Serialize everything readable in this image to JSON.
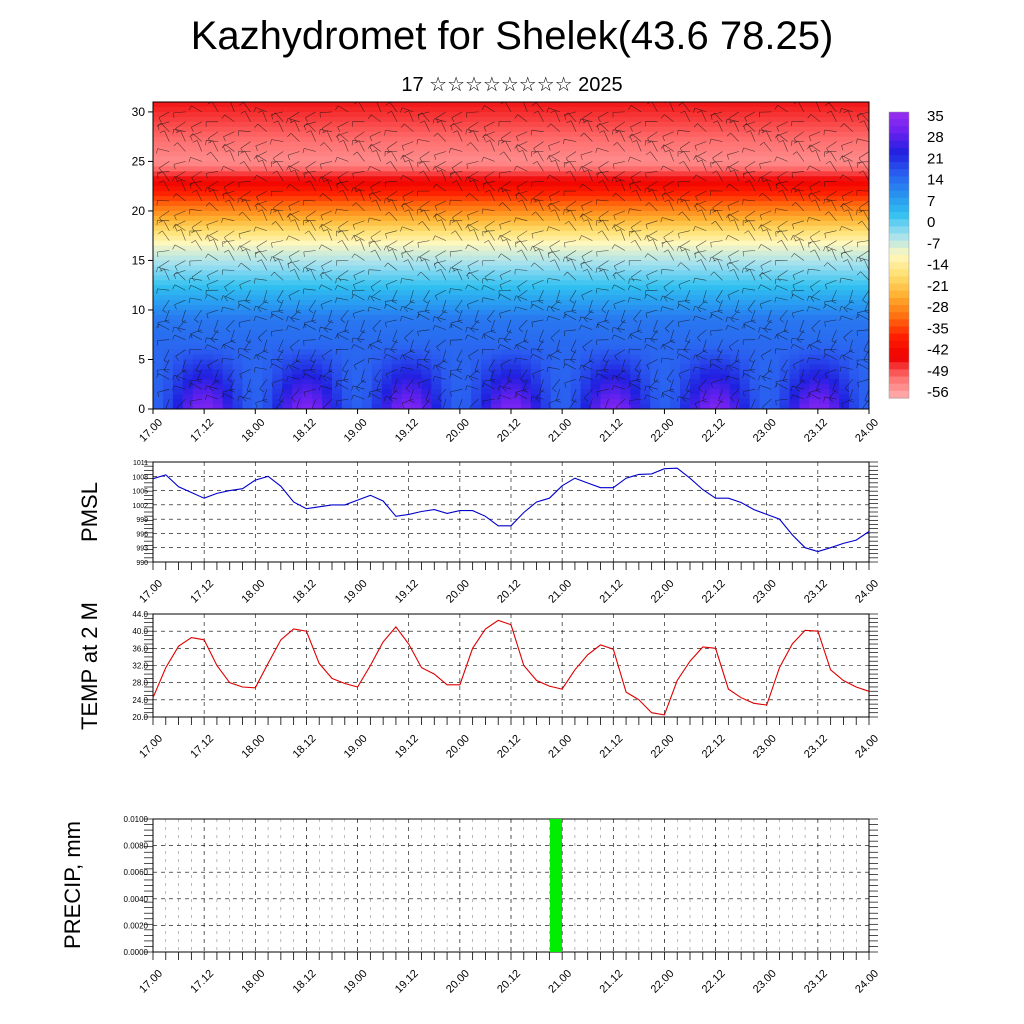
{
  "header": {
    "title": "Kazhydromet for Shelek(43.6 78.25)",
    "subtitle": "17 ☆☆☆☆☆☆☆☆ 2025"
  },
  "time_labels": [
    "17.00",
    "17.12",
    "18.00",
    "18.12",
    "19.00",
    "19.12",
    "20.00",
    "20.12",
    "21.00",
    "21.12",
    "22.00",
    "22.12",
    "23.00",
    "23.12",
    "24.00"
  ],
  "colors": {
    "pmsl_line": "#0000cc",
    "temp_line": "#dd0000",
    "precip_bar": "#00ee00",
    "colorbar": [
      "#9a30f0",
      "#6a20f0",
      "#2020e0",
      "#2a5cf0",
      "#2890f0",
      "#30c0f0",
      "#a0e0f0",
      "#fff8c0",
      "#ffe070",
      "#ffb030",
      "#ff7010",
      "#ff2000",
      "#ee0000",
      "#ff7070",
      "#ffb0b0"
    ]
  },
  "chart_data": [
    {
      "type": "heatmap",
      "description_key": "cross-section temperature with wind barbs",
      "y_ticks": [
        0,
        5,
        10,
        15,
        20,
        25,
        30
      ],
      "ylim": [
        0,
        31
      ],
      "x_ticks": [
        "17.00",
        "17.12",
        "18.00",
        "18.12",
        "19.00",
        "19.12",
        "20.00",
        "20.12",
        "21.00",
        "21.12",
        "22.00",
        "22.12",
        "23.00",
        "23.12",
        "24.00"
      ],
      "colorbar_labels": [
        "35",
        "28",
        "21",
        "14",
        "7",
        "0",
        "-7",
        "-14",
        "-21",
        "-28",
        "-35",
        "-42",
        "-49",
        "-56"
      ],
      "colorbar_range": [
        -60,
        40
      ],
      "warm_maxima_x": [
        0.5,
        1.5,
        2.5,
        3.5,
        4.5,
        5.5,
        6.5
      ]
    },
    {
      "type": "line",
      "ylabel": "PMSL",
      "ylim": [
        990,
        1011
      ],
      "y_ticks": [
        "990",
        "993",
        "996",
        "999",
        "1002",
        "1005",
        "1008",
        "1011"
      ],
      "x_ticks": [
        "17.00",
        "17.12",
        "18.00",
        "18.12",
        "19.00",
        "19.12",
        "20.00",
        "20.12",
        "21.00",
        "21.12",
        "22.00",
        "22.12",
        "23.00",
        "23.12",
        "24.00"
      ],
      "x": [
        0,
        0.125,
        0.25,
        0.375,
        0.5,
        0.625,
        0.75,
        0.875,
        1.0,
        1.125,
        1.25,
        1.375,
        1.5,
        1.625,
        1.75,
        1.875,
        2.0,
        2.125,
        2.25,
        2.375,
        2.5,
        2.625,
        2.75,
        2.875,
        3.0,
        3.125,
        3.25,
        3.375,
        3.5,
        3.625,
        3.75,
        3.875,
        4.0,
        4.125,
        4.25,
        4.375,
        4.5,
        4.625,
        4.75,
        4.875,
        5.0,
        5.125,
        5.25,
        5.375,
        5.5,
        5.625,
        5.75,
        5.875,
        6.0,
        6.125,
        6.25,
        6.375,
        6.5,
        6.625,
        6.75,
        6.875,
        7.0
      ],
      "series": [
        {
          "values": [
            1007.5,
            1008.3,
            1005.8,
            1004.6,
            1003.4,
            1004.4,
            1005.0,
            1005.4,
            1007.2,
            1008.0,
            1005.9,
            1002.6,
            1001.2,
            1001.6,
            1002.0,
            1002.0,
            1003.0,
            1004.0,
            1002.8,
            999.6,
            1000.0,
            1000.6,
            1001.0,
            1000.2,
            1000.8,
            1000.8,
            999.6,
            997.6,
            997.6,
            1000.4,
            1002.6,
            1003.4,
            1006.0,
            1007.6,
            1006.6,
            1005.6,
            1005.6,
            1007.6,
            1008.4,
            1008.5,
            1009.6,
            1009.7,
            1007.6,
            1005.2,
            1003.4,
            1003.4,
            1002.5,
            1001.0,
            1000.0,
            999.0,
            995.7,
            993.0,
            992.2,
            993.0,
            993.9,
            994.6,
            996.4
          ]
        }
      ]
    },
    {
      "type": "line",
      "ylabel": "TEMP at 2 M",
      "ylim": [
        20,
        44
      ],
      "y_ticks": [
        "20.0",
        "24.0",
        "28.0",
        "32.0",
        "36.0",
        "40.0",
        "44.0"
      ],
      "x_ticks": [
        "17.00",
        "17.12",
        "18.00",
        "18.12",
        "19.00",
        "19.12",
        "20.00",
        "20.12",
        "21.00",
        "21.12",
        "22.00",
        "22.12",
        "23.00",
        "23.12",
        "24.00"
      ],
      "x": [
        0,
        0.125,
        0.25,
        0.375,
        0.5,
        0.625,
        0.75,
        0.875,
        1.0,
        1.125,
        1.25,
        1.375,
        1.5,
        1.625,
        1.75,
        1.875,
        2.0,
        2.125,
        2.25,
        2.375,
        2.5,
        2.625,
        2.75,
        2.875,
        3.0,
        3.125,
        3.25,
        3.375,
        3.5,
        3.625,
        3.75,
        3.875,
        4.0,
        4.125,
        4.25,
        4.375,
        4.5,
        4.625,
        4.75,
        4.875,
        5.0,
        5.125,
        5.25,
        5.375,
        5.5,
        5.625,
        5.75,
        5.875,
        6.0,
        6.125,
        6.25,
        6.375,
        6.5,
        6.625,
        6.75,
        6.875,
        7.0
      ],
      "series": [
        {
          "values": [
            24.5,
            31.5,
            36.5,
            38.5,
            38.0,
            32.0,
            28.0,
            27.0,
            26.8,
            32.5,
            38.0,
            40.5,
            40.0,
            32.5,
            29.0,
            27.8,
            27.0,
            32.0,
            37.5,
            41.0,
            37.0,
            31.5,
            30.0,
            27.5,
            27.5,
            36.0,
            40.5,
            42.5,
            41.5,
            32.0,
            28.5,
            27.2,
            26.5,
            31.0,
            34.5,
            36.8,
            35.8,
            25.8,
            24.0,
            21.0,
            20.5,
            28.5,
            33.0,
            36.3,
            36.0,
            26.5,
            24.5,
            23.2,
            22.8,
            31.5,
            37.0,
            40.2,
            40.0,
            31.0,
            28.5,
            27.0,
            26.0
          ]
        }
      ]
    },
    {
      "type": "bar",
      "ylabel": "PRECIP, mm",
      "ylim": [
        0,
        0.01
      ],
      "y_ticks": [
        "0.0000",
        "0.0020",
        "0.0040",
        "0.0060",
        "0.0080",
        "0.0100"
      ],
      "x_ticks": [
        "17.00",
        "17.12",
        "18.00",
        "18.12",
        "19.00",
        "19.12",
        "20.00",
        "20.12",
        "21.00",
        "21.12",
        "22.00",
        "22.12",
        "23.00",
        "23.12",
        "24.00"
      ],
      "x": [
        3.94
      ],
      "values": [
        0.01
      ]
    }
  ]
}
